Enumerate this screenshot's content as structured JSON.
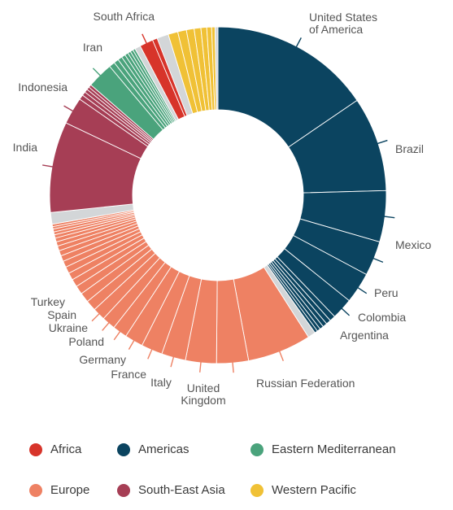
{
  "colors": {
    "africa": "#d7342a",
    "americas": "#0b4460",
    "eastern_mediterranean": "#4aa37c",
    "europe": "#ee8163",
    "south_east_asia": "#a63e55",
    "western_pacific": "#f0c136",
    "other": "#d3d6d8"
  },
  "chart_data": {
    "type": "pie",
    "donut": true,
    "legend_position": "bottom",
    "legend": [
      {
        "name": "Africa",
        "color_key": "africa"
      },
      {
        "name": "Americas",
        "color_key": "americas"
      },
      {
        "name": "Eastern Mediterranean",
        "color_key": "eastern_mediterranean"
      },
      {
        "name": "Europe",
        "color_key": "europe"
      },
      {
        "name": "South-East Asia",
        "color_key": "south_east_asia"
      },
      {
        "name": "Western Pacific",
        "color_key": "western_pacific"
      }
    ],
    "labels": {
      "usa": "United States of America",
      "brazil": "Brazil",
      "mexico": "Mexico",
      "peru": "Peru",
      "colombia": "Colombia",
      "argentina": "Argentina",
      "russia": "Russian Federation",
      "uk": "United Kingdom",
      "italy": "Italy",
      "france": "France",
      "germany": "Germany",
      "poland": "Poland",
      "ukraine": "Ukraine",
      "spain": "Spain",
      "turkey": "Turkey",
      "india": "India",
      "indonesia": "Indonesia",
      "iran": "Iran",
      "south_africa": "South Africa"
    },
    "slices": [
      {
        "label_key": "usa",
        "region": "americas",
        "value": 16.7
      },
      {
        "label_key": "brazil",
        "region": "americas",
        "value": 9.8
      },
      {
        "label_key": "mexico",
        "region": "americas",
        "value": 5.3
      },
      {
        "label_key": "peru",
        "region": "americas",
        "value": 3.6
      },
      {
        "label_key": "colombia",
        "region": "americas",
        "value": 3.2
      },
      {
        "label_key": "argentina",
        "region": "americas",
        "value": 2.2
      },
      {
        "region": "americas",
        "value": 0.6
      },
      {
        "region": "americas",
        "value": 0.5
      },
      {
        "region": "americas",
        "value": 0.45
      },
      {
        "region": "americas",
        "value": 0.4
      },
      {
        "region": "americas",
        "value": 0.35
      },
      {
        "region": "americas",
        "value": 0.3
      },
      {
        "region": "other",
        "value": 0.8
      },
      {
        "label_key": "russia",
        "region": "europe",
        "value": 6.6
      },
      {
        "label_key": "uk",
        "region": "europe",
        "value": 3.3
      },
      {
        "label_key": "italy",
        "region": "europe",
        "value": 3.2
      },
      {
        "label_key": "france",
        "region": "europe",
        "value": 2.5
      },
      {
        "label_key": "germany",
        "region": "europe",
        "value": 2.2
      },
      {
        "label_key": "poland",
        "region": "europe",
        "value": 1.9
      },
      {
        "label_key": "ukraine",
        "region": "europe",
        "value": 1.5
      },
      {
        "label_key": "spain",
        "region": "europe",
        "value": 1.4
      },
      {
        "label_key": "turkey",
        "region": "europe",
        "value": 1.3
      },
      {
        "region": "europe",
        "value": 1.1
      },
      {
        "region": "europe",
        "value": 1.0
      },
      {
        "region": "europe",
        "value": 0.9
      },
      {
        "region": "europe",
        "value": 0.8
      },
      {
        "region": "europe",
        "value": 0.75
      },
      {
        "region": "europe",
        "value": 0.7
      },
      {
        "region": "europe",
        "value": 0.65
      },
      {
        "region": "europe",
        "value": 0.6
      },
      {
        "region": "europe",
        "value": 0.55
      },
      {
        "region": "europe",
        "value": 0.5
      },
      {
        "region": "europe",
        "value": 0.45
      },
      {
        "region": "europe",
        "value": 0.4
      },
      {
        "region": "europe",
        "value": 0.35
      },
      {
        "region": "europe",
        "value": 0.3
      },
      {
        "region": "europe",
        "value": 0.3
      },
      {
        "region": "europe",
        "value": 0.25
      },
      {
        "region": "europe",
        "value": 0.25
      },
      {
        "region": "other",
        "value": 1.2
      },
      {
        "label_key": "india",
        "region": "south_east_asia",
        "value": 9.4
      },
      {
        "label_key": "indonesia",
        "region": "south_east_asia",
        "value": 2.8
      },
      {
        "region": "south_east_asia",
        "value": 0.5
      },
      {
        "region": "south_east_asia",
        "value": 0.4
      },
      {
        "region": "south_east_asia",
        "value": 0.35
      },
      {
        "region": "south_east_asia",
        "value": 0.3
      },
      {
        "region": "south_east_asia",
        "value": 0.3
      },
      {
        "label_key": "iran",
        "region": "eastern_mediterranean",
        "value": 2.7
      },
      {
        "region": "eastern_mediterranean",
        "value": 0.6
      },
      {
        "region": "eastern_mediterranean",
        "value": 0.5
      },
      {
        "region": "eastern_mediterranean",
        "value": 0.45
      },
      {
        "region": "eastern_mediterranean",
        "value": 0.4
      },
      {
        "region": "eastern_mediterranean",
        "value": 0.35
      },
      {
        "region": "eastern_mediterranean",
        "value": 0.3
      },
      {
        "region": "eastern_mediterranean",
        "value": 0.3
      },
      {
        "region": "eastern_mediterranean",
        "value": 0.25
      },
      {
        "region": "other",
        "value": 0.6
      },
      {
        "label_key": "south_africa",
        "region": "africa",
        "value": 1.4
      },
      {
        "region": "africa",
        "value": 0.5
      },
      {
        "region": "other",
        "value": 1.2
      },
      {
        "region": "western_pacific",
        "value": 1.0
      },
      {
        "region": "western_pacific",
        "value": 0.9
      },
      {
        "region": "western_pacific",
        "value": 0.8
      },
      {
        "region": "western_pacific",
        "value": 0.7
      },
      {
        "region": "western_pacific",
        "value": 0.6
      },
      {
        "region": "western_pacific",
        "value": 0.5
      },
      {
        "region": "western_pacific",
        "value": 0.35
      },
      {
        "region": "other",
        "value": 0.3
      }
    ]
  }
}
